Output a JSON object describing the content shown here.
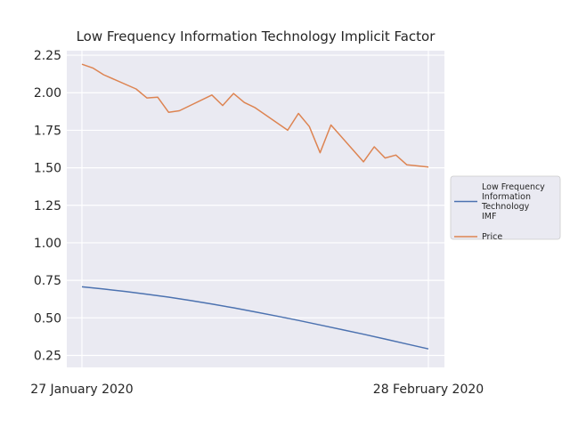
{
  "chart_data": {
    "type": "line",
    "title": "Low Frequency Information Technology Implicit Factor",
    "xlabel": "",
    "ylabel": "",
    "x_tick_labels": [
      "27 January 2020",
      "28 February 2020"
    ],
    "x_range_days": [
      0,
      32
    ],
    "ylim": [
      0.17,
      2.28
    ],
    "y_ticks": [
      0.25,
      0.5,
      0.75,
      1.0,
      1.25,
      1.5,
      1.75,
      2.0,
      2.25
    ],
    "y_tick_labels": [
      "0.25",
      "0.50",
      "0.75",
      "1.00",
      "1.25",
      "1.50",
      "1.75",
      "2.00",
      "2.25"
    ],
    "grid": true,
    "legend_position": "center-right-outside",
    "series": [
      {
        "name": "Low Frequency\nInformation\nTechnology\nIMF",
        "color": "#4c72b0",
        "x": [
          0,
          2,
          4,
          6,
          8,
          10,
          12,
          14,
          16,
          18,
          20,
          22,
          24,
          26,
          28,
          30,
          32
        ],
        "values": [
          0.707,
          0.692,
          0.676,
          0.658,
          0.638,
          0.616,
          0.592,
          0.567,
          0.54,
          0.512,
          0.483,
          0.453,
          0.422,
          0.391,
          0.359,
          0.326,
          0.293
        ]
      },
      {
        "name": "Price",
        "color": "#dd8452",
        "x": [
          0,
          1,
          2,
          5,
          6,
          7,
          8,
          9,
          12,
          13,
          14,
          15,
          16,
          19,
          20,
          21,
          22,
          23,
          26,
          27,
          28,
          29,
          30,
          32
        ],
        "values": [
          2.19,
          2.165,
          2.12,
          2.025,
          1.965,
          1.97,
          1.87,
          1.88,
          1.985,
          1.915,
          1.995,
          1.935,
          1.9,
          1.75,
          1.862,
          1.775,
          1.6,
          1.785,
          1.54,
          1.64,
          1.565,
          1.585,
          1.52,
          1.505
        ]
      }
    ]
  }
}
